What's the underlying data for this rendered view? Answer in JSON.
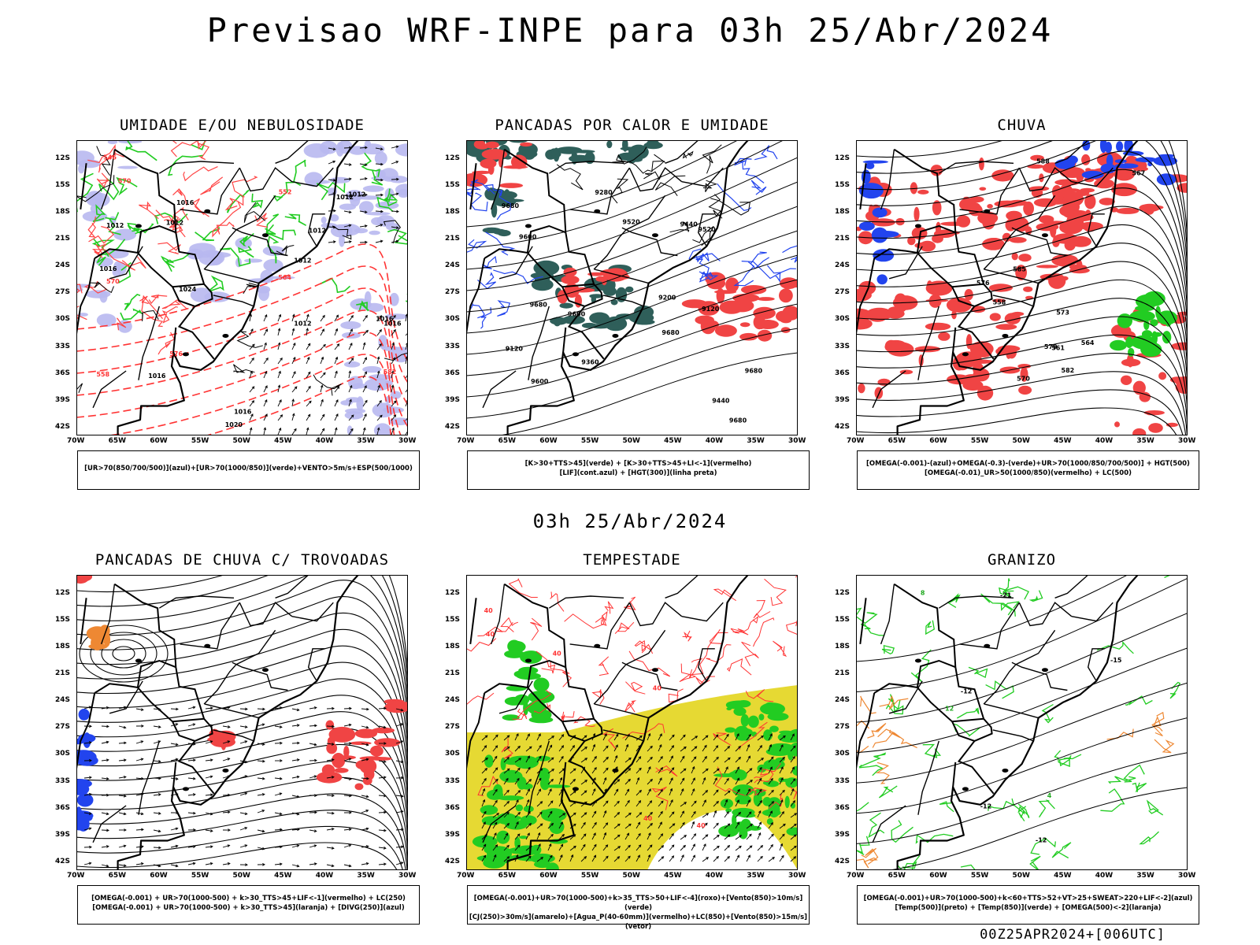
{
  "title": "Previsao WRF-INPE  para 03h 25/Abr/2024",
  "middle_title": "03h 25/Abr/2024",
  "footer": "00Z25APR2024+[006UTC]",
  "lat_labels": [
    "12S",
    "15S",
    "18S",
    "21S",
    "24S",
    "27S",
    "30S",
    "33S",
    "36S",
    "39S",
    "42S"
  ],
  "lon_labels": [
    "70W",
    "65W",
    "60W",
    "55W",
    "50W",
    "45W",
    "40W",
    "35W",
    "30W"
  ],
  "panels": [
    {
      "title": "UMIDADE E/OU NEBULOSIDADE",
      "legend": [
        "[UR>70(850/700/500)](azul)+[UR>70(1000/850)](verde)+VENTO>5m/s+ESP(500/1000)"
      ],
      "contour_labels": [
        "1012",
        "1012",
        "1012",
        "1016",
        "1012",
        "1020",
        "1012",
        "1024",
        "1012",
        "1016",
        "1016",
        "1016",
        "1012",
        "1016",
        "1016",
        "570",
        "570",
        "564",
        "558",
        "552",
        "546",
        "576",
        "582"
      ]
    },
    {
      "title": "PANCADAS POR CALOR E UMIDADE",
      "legend": [
        "[K>30+TTS>45](verde) + [K>30+TTS>45+LI<-1](vermelho)",
        "[LIF](cont.azul) + [HGT(300)](linha preta)"
      ],
      "contour_labels": [
        "9680",
        "9680",
        "9680",
        "9680",
        "9680",
        "9600",
        "9600",
        "9600",
        "9520",
        "9520",
        "9440",
        "9440",
        "9360",
        "9280",
        "9200",
        "9120",
        "9120"
      ]
    },
    {
      "title": "CHUVA",
      "legend": [
        "[OMEGA(-0.001)-(azul)+OMEGA(-0.3)-(verde)+UR>70(1000/850/700/500)] + HGT(500)",
        "[OMEGA(-0.01)_UR>50(1000/850)(vermelho) + LC(500)"
      ],
      "contour_labels": [
        "588",
        "585",
        "582",
        "579",
        "576",
        "573",
        "570",
        "567",
        "564",
        "561",
        "558"
      ]
    },
    {
      "title": "PANCADAS DE CHUVA C/ TROVOADAS",
      "legend": [
        "[OMEGA(-0.001) + UR>70(1000-500) + k>30_TTS>45+LIF<-1](vermelho) + LC(250)",
        "[OMEGA(-0.001) + UR>70(1000-500) + k>30_TTS>45](laranja) + [DIVG(250)](azul)"
      ],
      "contour_labels": []
    },
    {
      "title": "TEMPESTADE",
      "legend": [
        "[OMEGA(-0.001)+UR>70(1000-500)+k>35_TTS>50+LIF<-4](roxo)+[Vento(850)>10m/s](verde)",
        "[CJ(250)>30m/s](amarelo)+[Agua_P(40-60mm)](vermelho)+LC(850)+[Vento(850)>15m/s](vetor)"
      ],
      "contour_labels": [
        "40",
        "40",
        "40",
        "40",
        "40",
        "40"
      ]
    },
    {
      "title": "GRANIZO",
      "legend": [
        "[OMEGA(-0.001)+UR>70(1000-500)+k<60+TTS>52+VT>25+SWEAT>220+LIF<-2](azul)",
        "[Temp(500)](preto) + [Temp(850)](verde) + [OMEGA(500)<-2](laranja)"
      ],
      "contour_labels": [
        "-12",
        "-12",
        "-12",
        "-15",
        "-21",
        "4",
        "8",
        "12"
      ]
    }
  ]
}
